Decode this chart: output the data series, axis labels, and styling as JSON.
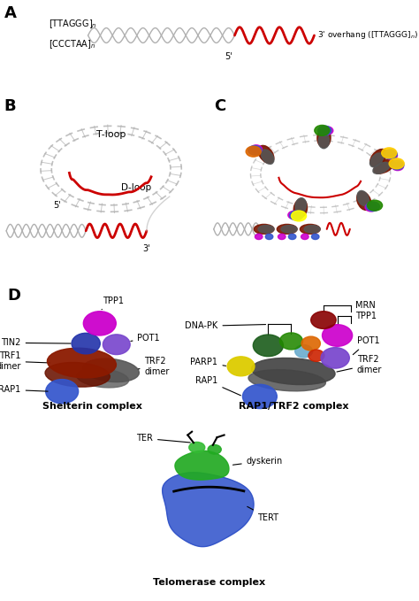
{
  "fig_width": 4.74,
  "fig_height": 6.79,
  "bg_color": "#ffffff",
  "panel_label_fontsize": 13,
  "panel_label_weight": "bold",
  "panel_A": {
    "ttaggg_label": "[TTAGGG]$_n$",
    "ccctaa_label": "[CCCTAA]$_n$",
    "overhang_label": "3' overhang ([TTAGGG]$_n$)",
    "prime5_label": "5'",
    "dsDNA_color": "#b0b0b0",
    "ssDNA_color": "#cc0000"
  },
  "panel_B": {
    "tloop_label": "T-loop",
    "dloop_label": "D-loop",
    "prime5_label": "5'",
    "prime3_label": "3'",
    "dna_color": "#b0b0b0",
    "ssDNA_color": "#cc0000"
  },
  "panel_C": {
    "dna_color": "#b0b0b0",
    "ssDNA_color": "#cc0000"
  },
  "shelterin": {
    "TRF1_color": "#8b1a00",
    "TRF2_color": "#555555",
    "RAP1_color": "#3355cc",
    "TIN2_color": "#8b1a00",
    "TPP1_color": "#cc00cc",
    "POT1_color": "#5533aa",
    "label_fontsize": 7
  },
  "rap1trf2": {
    "DNAPK_color": "#1a5c1a",
    "MRN_color": "#cc0000",
    "TPP1_color": "#cc00cc",
    "POT1_color": "#5533aa",
    "TRF2_color": "#444444",
    "RAP1_color": "#3355cc",
    "PARP1_color": "#ddcc00",
    "orange_color": "#dd6600",
    "red_color": "#cc2200",
    "lightblue_color": "#66aacc",
    "green_color": "#228800",
    "label_fontsize": 7
  },
  "telomerase": {
    "TER_color": "#22aa22",
    "dyskerin_color": "#33bb33",
    "TERT_color": "#3355cc",
    "label_fontsize": 7
  }
}
